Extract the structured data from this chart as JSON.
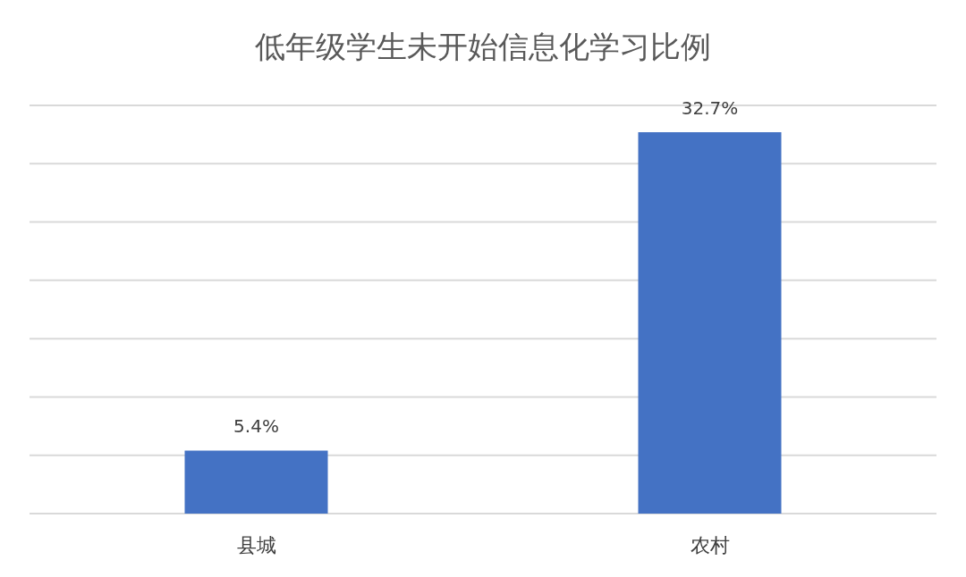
{
  "chart_data": {
    "type": "bar",
    "title": "低年级学生未开始信息化学习比例",
    "categories": [
      "县城",
      "农村"
    ],
    "values": [
      5.4,
      32.7
    ],
    "value_labels": [
      "5.4%",
      "32.7%"
    ],
    "color": "#4472c4",
    "ylim": [
      0,
      35
    ],
    "yticks": [
      {
        "value": 0,
        "label": null
      },
      {
        "value": 5,
        "label": null
      },
      {
        "value": 10,
        "label": null
      },
      {
        "value": 15,
        "label": null
      },
      {
        "value": 20,
        "label": null
      },
      {
        "value": 25,
        "label": null
      },
      {
        "value": 30,
        "label": null
      },
      {
        "value": 35,
        "label": null
      }
    ],
    "grid": "y",
    "tick_labels": "x"
  }
}
